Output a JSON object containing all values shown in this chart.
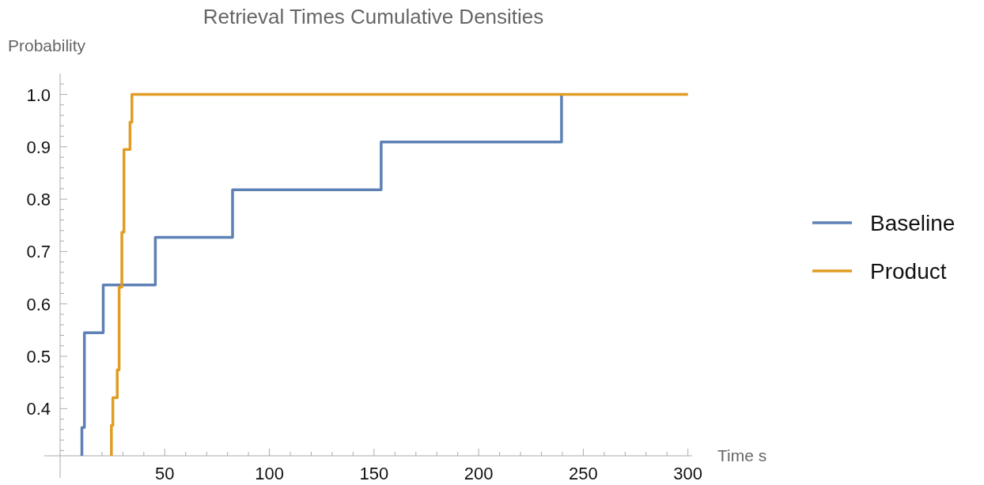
{
  "chart_data": {
    "type": "step",
    "title": "Retrieval Times Cumulative Densities",
    "xlabel": "Time s",
    "ylabel": "Probability",
    "xlim": [
      0,
      302
    ],
    "ylim": [
      0.31,
      1.04
    ],
    "xticks": [
      {
        "value": 10,
        "label": null
      },
      {
        "value": 20,
        "label": null
      },
      {
        "value": 30,
        "label": null
      },
      {
        "value": 40,
        "label": null
      },
      50,
      {
        "value": 60,
        "label": null
      },
      {
        "value": 70,
        "label": null
      },
      {
        "value": 80,
        "label": null
      },
      {
        "value": 90,
        "label": null
      },
      100,
      {
        "value": 110,
        "label": null
      },
      {
        "value": 120,
        "label": null
      },
      {
        "value": 130,
        "label": null
      },
      {
        "value": 140,
        "label": null
      },
      150,
      {
        "value": 160,
        "label": null
      },
      {
        "value": 170,
        "label": null
      },
      {
        "value": 180,
        "label": null
      },
      {
        "value": 190,
        "label": null
      },
      200,
      {
        "value": 210,
        "label": null
      },
      {
        "value": 220,
        "label": null
      },
      {
        "value": 230,
        "label": null
      },
      {
        "value": 240,
        "label": null
      },
      250,
      {
        "value": 260,
        "label": null
      },
      {
        "value": 270,
        "label": null
      },
      {
        "value": 280,
        "label": null
      },
      {
        "value": 290,
        "label": null
      },
      300
    ],
    "yticks": [
      {
        "value": 0.32,
        "label": null
      },
      {
        "value": 0.34,
        "label": null
      },
      {
        "value": 0.36,
        "label": null
      },
      {
        "value": 0.38,
        "label": null
      },
      {
        "value": 0.4,
        "label": "0.4"
      },
      {
        "value": 0.42,
        "label": null
      },
      {
        "value": 0.44,
        "label": null
      },
      {
        "value": 0.46,
        "label": null
      },
      {
        "value": 0.48,
        "label": null
      },
      {
        "value": 0.5,
        "label": "0.5"
      },
      {
        "value": 0.52,
        "label": null
      },
      {
        "value": 0.54,
        "label": null
      },
      {
        "value": 0.56,
        "label": null
      },
      {
        "value": 0.58,
        "label": null
      },
      {
        "value": 0.6,
        "label": "0.6"
      },
      {
        "value": 0.62,
        "label": null
      },
      {
        "value": 0.64,
        "label": null
      },
      {
        "value": 0.66,
        "label": null
      },
      {
        "value": 0.68,
        "label": null
      },
      {
        "value": 0.7,
        "label": "0.7"
      },
      {
        "value": 0.72,
        "label": null
      },
      {
        "value": 0.74,
        "label": null
      },
      {
        "value": 0.76,
        "label": null
      },
      {
        "value": 0.78,
        "label": null
      },
      {
        "value": 0.8,
        "label": "0.8"
      },
      {
        "value": 0.82,
        "label": null
      },
      {
        "value": 0.84,
        "label": null
      },
      {
        "value": 0.86,
        "label": null
      },
      {
        "value": 0.88,
        "label": null
      },
      {
        "value": 0.9,
        "label": "0.9"
      },
      {
        "value": 0.92,
        "label": null
      },
      {
        "value": 0.94,
        "label": null
      },
      {
        "value": 0.96,
        "label": null
      },
      {
        "value": 0.98,
        "label": null
      },
      {
        "value": 1.0,
        "label": "1.0"
      },
      {
        "value": 1.02,
        "label": null
      }
    ],
    "grid": false,
    "legend": "right",
    "marker": "none",
    "line_style": "solid",
    "series": [
      {
        "name": "Baseline",
        "color": "#5e81b5",
        "x": [
          10.4,
          10.4,
          11.6,
          20.6,
          45.5,
          82.4,
          153.4,
          239.6
        ],
        "values": [
          0.31,
          0.364,
          0.545,
          0.636,
          0.727,
          0.818,
          0.909,
          1.0
        ]
      },
      {
        "name": "Product",
        "color": "#e19c24",
        "x": [
          24.5,
          24.5,
          25.2,
          27.3,
          28.2,
          29.5,
          30.5,
          33.4,
          34.3,
          300
        ],
        "values": [
          0.31,
          0.368,
          0.421,
          0.474,
          0.632,
          0.737,
          0.895,
          0.947,
          1.0,
          1.0
        ]
      }
    ]
  }
}
